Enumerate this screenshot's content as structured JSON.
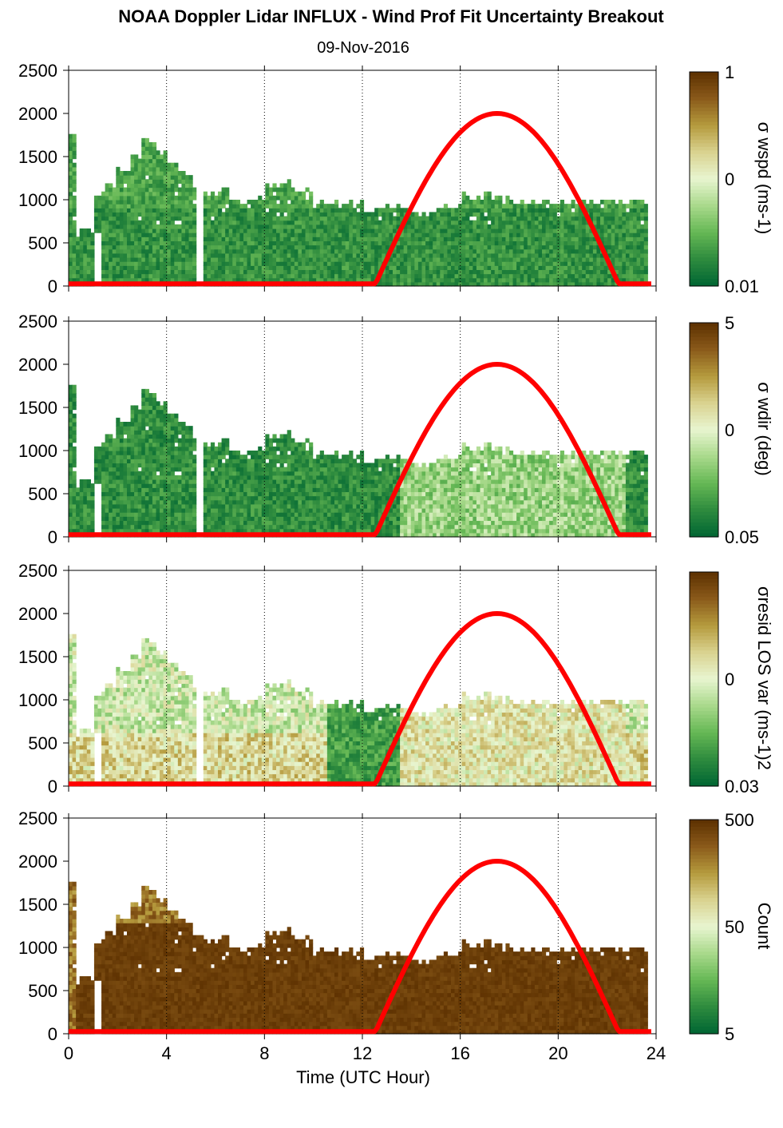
{
  "title": "NOAA Doppler Lidar INFLUX - Wind Prof Fit Uncertainty Breakout",
  "subtitle": "09-Nov-2016",
  "xlabel": "Time (UTC Hour)",
  "x_ticks": [
    "0",
    "4",
    "8",
    "12",
    "16",
    "20",
    "24"
  ],
  "y_ticks": [
    "0",
    "500",
    "1000",
    "1500",
    "2000",
    "2500"
  ],
  "colors": {
    "sun_curve": "#ff0000",
    "colormap": [
      "#006633",
      "#2e8b3e",
      "#66b855",
      "#a9d98b",
      "#e8f5d0",
      "#d9d28f",
      "#b59a3d",
      "#8a5a1a",
      "#5c3000"
    ]
  },
  "chart_data": [
    {
      "type": "heatmap",
      "panel": "wspd",
      "colorbar_label": "σ wspd (ms-1)",
      "colorbar_ticks": [
        "1",
        "0",
        "0.01"
      ],
      "colorbar_scale": "log",
      "xlim": [
        0,
        24
      ],
      "ylim": [
        0,
        2500
      ],
      "grid": "dotted vertical at 4-hour intervals",
      "overlay": "red solar elevation curve, peak ~2000 at 17.5 UTC, zero before 12.5 and after 22.5",
      "value_regime": "mostly low (dark green) throughout"
    },
    {
      "type": "heatmap",
      "panel": "wdir",
      "colorbar_label": "σ wdir (deg)",
      "colorbar_ticks": [
        "5",
        "0",
        "0.05"
      ],
      "colorbar_scale": "log",
      "xlim": [
        0,
        24
      ],
      "ylim": [
        0,
        2500
      ],
      "grid": "dotted vertical at 4-hour intervals",
      "overlay": "red solar elevation curve",
      "value_regime": "dark green at night, lighter green during daytime"
    },
    {
      "type": "heatmap",
      "panel": "resid",
      "colorbar_label": "σresid LOS var (ms-1)2",
      "colorbar_ticks": [
        "0",
        "0.03"
      ],
      "colorbar_scale": "log",
      "xlim": [
        0,
        24
      ],
      "ylim": [
        0,
        2500
      ],
      "grid": "dotted vertical at 4-hour intervals",
      "overlay": "red solar elevation curve",
      "value_regime": "mixed light green / tan, pale during daytime"
    },
    {
      "type": "heatmap",
      "panel": "count",
      "colorbar_label": "Count",
      "colorbar_ticks": [
        "500",
        "50",
        "5"
      ],
      "colorbar_scale": "log",
      "xlim": [
        0,
        24
      ],
      "ylim": [
        0,
        2500
      ],
      "grid": "dotted vertical at 4-hour intervals",
      "overlay": "red solar elevation curve",
      "value_regime": "mostly high (dark brown) throughout"
    }
  ]
}
